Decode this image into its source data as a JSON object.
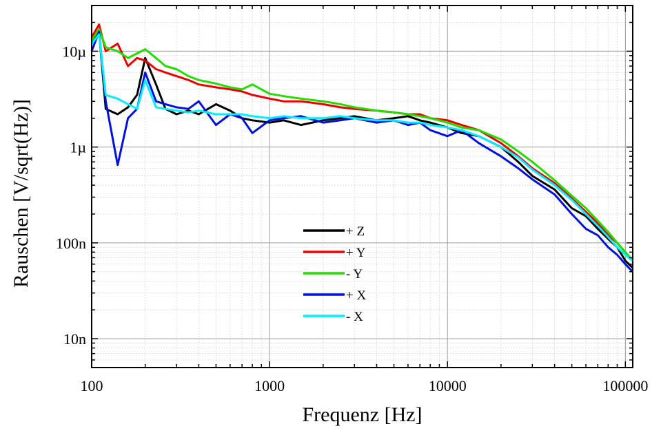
{
  "chart_data": {
    "type": "line",
    "title": "",
    "xlabel": "Frequenz [Hz]",
    "ylabel": "Rauschen [V/sqrt(Hz)]",
    "xscale": "log",
    "yscale": "log",
    "xlim": [
      100,
      110000
    ],
    "ylim": [
      5e-09,
      3e-05
    ],
    "grid": true,
    "legend_position": "center-lower",
    "x_ticks": [
      {
        "value": 100,
        "label": "100"
      },
      {
        "value": 1000,
        "label": "1000"
      },
      {
        "value": 10000,
        "label": "10000"
      },
      {
        "value": 100000,
        "label": "100000"
      }
    ],
    "y_ticks": [
      {
        "value": 1e-08,
        "label": "10n"
      },
      {
        "value": 1e-07,
        "label": "100n"
      },
      {
        "value": 1e-06,
        "label": "1µ"
      },
      {
        "value": 1e-05,
        "label": "10µ"
      }
    ],
    "series": [
      {
        "name": "+ Z",
        "color": "#000000",
        "x": [
          100,
          110,
          120,
          140,
          160,
          180,
          200,
          230,
          260,
          300,
          350,
          400,
          500,
          600,
          700,
          800,
          1000,
          1200,
          1500,
          2000,
          2500,
          3000,
          4000,
          5000,
          6000,
          7000,
          8000,
          10000,
          12000,
          15000,
          20000,
          25000,
          30000,
          40000,
          50000,
          60000,
          70000,
          80000,
          90000,
          100000,
          110000
        ],
        "y": [
          1.2e-05,
          1.6e-05,
          2.5e-06,
          2.2e-06,
          2.6e-06,
          3.5e-06,
          8.5e-06,
          4.5e-06,
          2.5e-06,
          2.2e-06,
          2.4e-06,
          2.2e-06,
          2.8e-06,
          2.4e-06,
          2e-06,
          1.9e-06,
          1.8e-06,
          1.9e-06,
          1.7e-06,
          1.9e-06,
          2e-06,
          2.1e-06,
          1.9e-06,
          2e-06,
          2.1e-06,
          1.9e-06,
          1.8e-06,
          1.6e-06,
          1.4e-06,
          1.3e-06,
          1e-06,
          7e-07,
          5e-07,
          3.6e-07,
          2.3e-07,
          1.9e-07,
          1.4e-07,
          1.1e-07,
          9e-08,
          6.5e-08,
          5.5e-08
        ]
      },
      {
        "name": "+ Y",
        "color": "#ee0000",
        "x": [
          100,
          110,
          120,
          140,
          160,
          180,
          200,
          230,
          260,
          300,
          350,
          400,
          500,
          600,
          700,
          800,
          1000,
          1200,
          1500,
          2000,
          2500,
          3000,
          4000,
          5000,
          6000,
          7000,
          8000,
          10000,
          12000,
          15000,
          20000,
          25000,
          30000,
          40000,
          50000,
          60000,
          70000,
          80000,
          90000,
          100000,
          110000
        ],
        "y": [
          1.4e-05,
          1.9e-05,
          1e-05,
          1.2e-05,
          7e-06,
          8.5e-06,
          8e-06,
          6.5e-06,
          6e-06,
          5.5e-06,
          5e-06,
          4.5e-06,
          4.2e-06,
          4e-06,
          3.8e-06,
          3.5e-06,
          3.2e-06,
          3e-06,
          3e-06,
          2.8e-06,
          2.6e-06,
          2.5e-06,
          2.4e-06,
          2.3e-06,
          2.2e-06,
          2.2e-06,
          2e-06,
          1.9e-06,
          1.7e-06,
          1.5e-06,
          1.1e-06,
          8e-07,
          6e-07,
          4.2e-07,
          2.9e-07,
          2.1e-07,
          1.6e-07,
          1.2e-07,
          1e-07,
          8e-08,
          6.5e-08
        ]
      },
      {
        "name": "- Y",
        "color": "#22dd00",
        "x": [
          100,
          110,
          120,
          140,
          160,
          180,
          200,
          230,
          260,
          300,
          350,
          400,
          500,
          600,
          700,
          800,
          1000,
          1200,
          1500,
          2000,
          2500,
          3000,
          4000,
          5000,
          6000,
          7000,
          8000,
          10000,
          12000,
          15000,
          20000,
          25000,
          30000,
          40000,
          50000,
          60000,
          70000,
          80000,
          90000,
          100000,
          110000
        ],
        "y": [
          1.3e-05,
          1.7e-05,
          1.1e-05,
          1e-05,
          8.5e-06,
          9.5e-06,
          1.05e-05,
          8.5e-06,
          7e-06,
          6.5e-06,
          5.5e-06,
          5e-06,
          4.6e-06,
          4.2e-06,
          4e-06,
          4.5e-06,
          3.6e-06,
          3.4e-06,
          3.2e-06,
          3e-06,
          2.8e-06,
          2.6e-06,
          2.4e-06,
          2.3e-06,
          2.2e-06,
          2.1e-06,
          2e-06,
          1.8e-06,
          1.6e-06,
          1.5e-06,
          1.2e-06,
          9e-07,
          7e-07,
          4.5e-07,
          3.1e-07,
          2.3e-07,
          1.7e-07,
          1.3e-07,
          1e-07,
          8e-08,
          6.5e-08
        ]
      },
      {
        "name": "+ X",
        "color": "#0010dd",
        "x": [
          100,
          110,
          120,
          140,
          160,
          180,
          200,
          230,
          260,
          300,
          350,
          400,
          500,
          600,
          700,
          800,
          1000,
          1200,
          1500,
          2000,
          2500,
          3000,
          4000,
          5000,
          6000,
          7000,
          8000,
          10000,
          12000,
          15000,
          20000,
          25000,
          30000,
          40000,
          50000,
          60000,
          70000,
          80000,
          90000,
          100000,
          110000
        ],
        "y": [
          1e-05,
          1.6e-05,
          3e-06,
          6.5e-07,
          2e-06,
          2.5e-06,
          6e-06,
          3e-06,
          2.8e-06,
          2.6e-06,
          2.5e-06,
          3e-06,
          1.7e-06,
          2.2e-06,
          2e-06,
          1.4e-06,
          1.9e-06,
          2e-06,
          2.1e-06,
          1.8e-06,
          1.9e-06,
          2e-06,
          1.8e-06,
          1.9e-06,
          1.7e-06,
          1.8e-06,
          1.5e-06,
          1.3e-06,
          1.5e-06,
          1.1e-06,
          8e-07,
          6e-07,
          4.6e-07,
          3.2e-07,
          2e-07,
          1.4e-07,
          1.2e-07,
          9e-08,
          7.5e-08,
          6e-08,
          5e-08
        ]
      },
      {
        "name": "- X",
        "color": "#00eeff",
        "x": [
          100,
          110,
          120,
          140,
          160,
          180,
          200,
          230,
          260,
          300,
          350,
          400,
          500,
          600,
          700,
          800,
          1000,
          1200,
          1500,
          2000,
          2500,
          3000,
          4000,
          5000,
          6000,
          7000,
          8000,
          10000,
          12000,
          15000,
          20000,
          25000,
          30000,
          40000,
          50000,
          60000,
          70000,
          80000,
          90000,
          100000,
          110000
        ],
        "y": [
          1.2e-05,
          1.5e-05,
          3.5e-06,
          3.2e-06,
          2.8e-06,
          2.5e-06,
          5e-06,
          2.6e-06,
          2.5e-06,
          2.4e-06,
          2.3e-06,
          2.4e-06,
          2.2e-06,
          2.2e-06,
          2.2e-06,
          2.1e-06,
          2e-06,
          2.1e-06,
          2e-06,
          2e-06,
          2.1e-06,
          2e-06,
          1.9e-06,
          1.9e-06,
          1.8e-06,
          1.8e-06,
          1.7e-06,
          1.6e-06,
          1.5e-06,
          1.3e-06,
          1e-06,
          7.8e-07,
          5.8e-07,
          4e-07,
          2.8e-07,
          2e-07,
          1.5e-07,
          1.15e-07,
          9e-08,
          7.5e-08,
          6.5e-08
        ]
      }
    ]
  }
}
